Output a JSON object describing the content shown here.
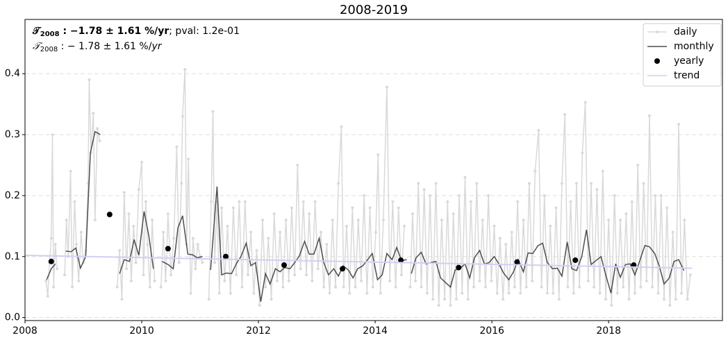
{
  "chart_data": {
    "type": "line",
    "title": "2008-2019",
    "xlim": [
      2008,
      2019.95
    ],
    "xticks": [
      2008,
      2010,
      2012,
      2014,
      2016,
      2018
    ],
    "ylim": [
      -0.005,
      0.489
    ],
    "yticks": [
      {
        "value": 0,
        "label": "0.0"
      },
      0.1,
      0.2,
      0.3,
      0.4
    ],
    "grid": true,
    "legend": "upper right",
    "annotations": [
      [
        {
          "text": "𝒯",
          "style": "bold"
        },
        {
          "text": "2008",
          "style": "bold",
          "sub": true
        },
        {
          "text": " : −1.78 ± 1.61 %/yr",
          "style": "bold"
        },
        {
          "text": "; pval: 1.2e-01",
          "style": "normal"
        }
      ],
      [
        {
          "text": "𝒯",
          "style": "italic"
        },
        {
          "text": "2008",
          "style": "normal",
          "sub": true
        },
        {
          "text": " : − 1.78 ± 1.61 %/",
          "style": "normal"
        },
        {
          "text": "yr",
          "style": "italic"
        }
      ]
    ],
    "series": [
      {
        "name": "daily",
        "kind": "line",
        "marker": true,
        "color": "#d9d9d9",
        "x": [
          2008.36,
          2008.39,
          2008.42,
          2008.45,
          2008.47,
          2008.49,
          2008.52,
          2008.55,
          2008.6,
          2008.68,
          2008.71,
          2008.74,
          2008.78,
          2008.81,
          2008.85,
          2008.88,
          2008.92,
          2008.96,
          2009.0,
          2009.04,
          2009.08,
          2009.1,
          2009.13,
          2009.17,
          2009.2,
          2009.24,
          2009.28,
          2009.4,
          2009.58,
          2009.62,
          2009.66,
          2009.7,
          2009.74,
          2009.78,
          2009.82,
          2009.86,
          2009.9,
          2009.95,
          2010.0,
          2010.03,
          2010.07,
          2010.1,
          2010.14,
          2010.18,
          2010.22,
          2010.28,
          2010.33,
          2010.37,
          2010.41,
          2010.45,
          2010.5,
          2010.55,
          2010.6,
          2010.64,
          2010.68,
          2010.7,
          2010.74,
          2010.77,
          2010.8,
          2010.84,
          2010.88,
          2010.92,
          2010.96,
          2011.0,
          2011.04,
          2011.1,
          2011.15,
          2011.19,
          2011.22,
          2011.25,
          2011.29,
          2011.33,
          2011.37,
          2011.42,
          2011.47,
          2011.52,
          2011.57,
          2011.62,
          2011.67,
          2011.72,
          2011.77,
          2011.82,
          2011.87,
          2011.92,
          2011.97,
          2012.02,
          2012.07,
          2012.12,
          2012.17,
          2012.22,
          2012.27,
          2012.32,
          2012.37,
          2012.42,
          2012.47,
          2012.52,
          2012.57,
          2012.62,
          2012.67,
          2012.72,
          2012.77,
          2012.82,
          2012.87,
          2012.92,
          2012.97,
          2013.02,
          2013.07,
          2013.12,
          2013.17,
          2013.22,
          2013.27,
          2013.32,
          2013.37,
          2013.42,
          2013.46,
          2013.51,
          2013.56,
          2013.61,
          2013.66,
          2013.71,
          2013.76,
          2013.81,
          2013.86,
          2013.91,
          2013.96,
          2014.01,
          2014.05,
          2014.09,
          2014.14,
          2014.2,
          2014.25,
          2014.3,
          2014.35,
          2014.4,
          2014.45,
          2014.5,
          2014.56,
          2014.6,
          2014.64,
          2014.69,
          2014.74,
          2014.79,
          2014.84,
          2014.89,
          2014.94,
          2014.99,
          2015.04,
          2015.09,
          2015.14,
          2015.19,
          2015.24,
          2015.29,
          2015.34,
          2015.39,
          2015.44,
          2015.49,
          2015.54,
          2015.59,
          2015.64,
          2015.69,
          2015.74,
          2015.79,
          2015.84,
          2015.89,
          2015.94,
          2015.99,
          2016.04,
          2016.09,
          2016.14,
          2016.19,
          2016.24,
          2016.29,
          2016.34,
          2016.39,
          2016.44,
          2016.49,
          2016.54,
          2016.59,
          2016.64,
          2016.69,
          2016.74,
          2016.8,
          2016.85,
          2016.9,
          2016.95,
          2017.0,
          2017.05,
          2017.1,
          2017.15,
          2017.2,
          2017.25,
          2017.3,
          2017.35,
          2017.4,
          2017.45,
          2017.5,
          2017.55,
          2017.6,
          2017.65,
          2017.7,
          2017.75,
          2017.8,
          2017.85,
          2017.9,
          2017.95,
          2018.0,
          2018.05,
          2018.1,
          2018.15,
          2018.2,
          2018.25,
          2018.3,
          2018.35,
          2018.4,
          2018.45,
          2018.5,
          2018.55,
          2018.6,
          2018.65,
          2018.7,
          2018.75,
          2018.8,
          2018.85,
          2018.9,
          2018.95,
          2019.0,
          2019.05,
          2019.1,
          2019.15,
          2019.2,
          2019.25,
          2019.3,
          2019.35,
          2019.4
        ],
        "values": [
          0.06,
          0.035,
          0.09,
          0.13,
          0.3,
          0.05,
          0.12,
          0.08,
          null,
          0.07,
          0.16,
          0.1,
          0.24,
          0.05,
          0.19,
          0.12,
          0.06,
          0.14,
          0.09,
          0.11,
          0.22,
          0.39,
          0.27,
          0.335,
          0.16,
          0.31,
          0.29,
          null,
          0.05,
          0.11,
          0.03,
          0.205,
          0.08,
          0.17,
          0.06,
          0.15,
          0.09,
          0.21,
          0.255,
          0.07,
          0.19,
          0.12,
          0.05,
          0.16,
          0.06,
          null,
          0.05,
          0.14,
          0.06,
          0.17,
          0.07,
          0.13,
          0.28,
          0.09,
          0.22,
          0.33,
          0.407,
          0.12,
          0.26,
          0.04,
          0.13,
          0.08,
          0.12,
          0.1,
          0.09,
          null,
          0.03,
          0.19,
          0.338,
          0.09,
          0.19,
          0.04,
          0.18,
          0.06,
          0.15,
          0.04,
          0.18,
          0.07,
          0.19,
          0.05,
          0.19,
          0.07,
          0.14,
          0.04,
          0.11,
          0.02,
          0.16,
          0.05,
          0.13,
          0.03,
          0.17,
          0.06,
          0.14,
          0.05,
          0.16,
          0.06,
          0.18,
          0.07,
          0.25,
          0.08,
          0.19,
          0.07,
          0.17,
          0.06,
          0.19,
          0.08,
          0.14,
          0.05,
          0.12,
          0.04,
          0.16,
          0.05,
          0.22,
          0.313,
          0.05,
          0.15,
          0.04,
          0.18,
          0.05,
          0.16,
          0.06,
          0.2,
          0.04,
          0.18,
          0.05,
          0.14,
          0.267,
          0.04,
          0.16,
          0.378,
          0.06,
          0.19,
          0.05,
          0.18,
          0.07,
          0.15,
          null,
          0.05,
          0.17,
          0.06,
          0.22,
          0.05,
          0.21,
          0.04,
          0.2,
          0.03,
          0.22,
          0.02,
          0.16,
          0.03,
          0.19,
          0.02,
          0.17,
          0.03,
          0.2,
          0.04,
          0.23,
          0.03,
          0.19,
          0.05,
          0.22,
          0.06,
          0.16,
          0.05,
          0.2,
          0.06,
          0.15,
          0.04,
          0.13,
          0.03,
          0.12,
          0.04,
          0.14,
          0.05,
          0.19,
          0.04,
          0.16,
          0.05,
          0.22,
          0.06,
          0.24,
          0.307,
          0.05,
          0.2,
          0.04,
          0.15,
          0.04,
          0.18,
          0.03,
          0.22,
          0.333,
          0.05,
          0.19,
          0.04,
          0.22,
          0.05,
          0.27,
          0.353,
          0.06,
          0.22,
          0.05,
          0.21,
          0.04,
          0.24,
          0.03,
          0.16,
          0.02,
          0.2,
          0.04,
          0.16,
          0.05,
          0.17,
          0.03,
          0.19,
          0.04,
          0.25,
          0.05,
          0.22,
          0.06,
          0.331,
          0.05,
          0.2,
          0.04,
          0.2,
          0.03,
          0.18,
          0.02,
          0.14,
          0.03,
          0.317,
          0.04,
          0.16,
          0.03,
          0.07
        ]
      },
      {
        "name": "monthly",
        "kind": "line",
        "marker": false,
        "color": "#4d4d4d",
        "x": [
          2008.37,
          2008.45,
          2008.52,
          2008.6,
          2008.7,
          2008.79,
          2008.87,
          2008.95,
          2009.04,
          2009.12,
          2009.2,
          2009.29,
          2009.45,
          2009.62,
          2009.7,
          2009.79,
          2009.87,
          2009.95,
          2010.04,
          2010.12,
          2010.2,
          2010.28,
          2010.35,
          2010.45,
          2010.54,
          2010.62,
          2010.7,
          2010.79,
          2010.87,
          2010.95,
          2011.04,
          2011.1,
          2011.18,
          2011.29,
          2011.37,
          2011.45,
          2011.54,
          2011.62,
          2011.7,
          2011.79,
          2011.87,
          2011.95,
          2012.04,
          2012.12,
          2012.2,
          2012.29,
          2012.37,
          2012.45,
          2012.54,
          2012.62,
          2012.7,
          2012.79,
          2012.87,
          2012.95,
          2013.04,
          2013.12,
          2013.2,
          2013.29,
          2013.37,
          2013.45,
          2013.54,
          2013.62,
          2013.7,
          2013.79,
          2013.87,
          2013.95,
          2014.04,
          2014.12,
          2014.2,
          2014.29,
          2014.37,
          2014.45,
          2014.54,
          2014.58,
          2014.62,
          2014.7,
          2014.79,
          2014.87,
          2014.95,
          2015.04,
          2015.12,
          2015.2,
          2015.29,
          2015.37,
          2015.45,
          2015.54,
          2015.62,
          2015.7,
          2015.79,
          2015.87,
          2015.95,
          2016.04,
          2016.12,
          2016.2,
          2016.29,
          2016.37,
          2016.45,
          2016.54,
          2016.62,
          2016.7,
          2016.79,
          2016.87,
          2016.95,
          2017.04,
          2017.12,
          2017.2,
          2017.29,
          2017.37,
          2017.45,
          2017.54,
          2017.62,
          2017.7,
          2017.79,
          2017.87,
          2017.95,
          2018.04,
          2018.12,
          2018.2,
          2018.29,
          2018.37,
          2018.45,
          2018.54,
          2018.62,
          2018.7,
          2018.79,
          2018.87,
          2018.95,
          2019.04,
          2019.12,
          2019.2,
          2019.29
        ],
        "values": [
          0.062,
          0.08,
          0.088,
          null,
          0.109,
          0.108,
          0.114,
          0.081,
          0.1,
          0.27,
          0.305,
          0.3,
          null,
          0.072,
          0.095,
          0.092,
          0.128,
          0.102,
          0.174,
          0.135,
          0.08,
          null,
          0.092,
          0.087,
          0.08,
          0.147,
          0.167,
          0.104,
          0.103,
          0.098,
          0.1,
          null,
          0.078,
          0.215,
          0.07,
          0.073,
          0.072,
          0.088,
          0.1,
          0.122,
          0.085,
          0.09,
          0.026,
          0.072,
          0.055,
          0.08,
          0.075,
          0.082,
          0.08,
          0.09,
          0.101,
          0.125,
          0.104,
          0.104,
          0.13,
          0.09,
          0.07,
          0.08,
          0.068,
          0.085,
          0.078,
          0.065,
          0.08,
          0.085,
          0.095,
          0.105,
          0.062,
          0.07,
          0.105,
          0.095,
          0.115,
          0.093,
          0.095,
          null,
          0.072,
          0.098,
          0.107,
          0.088,
          0.09,
          0.092,
          0.065,
          0.058,
          0.05,
          0.078,
          0.08,
          0.088,
          0.065,
          0.098,
          0.11,
          0.088,
          0.09,
          0.1,
          0.088,
          0.073,
          0.062,
          0.075,
          0.095,
          0.075,
          0.106,
          0.105,
          0.118,
          0.122,
          0.09,
          0.08,
          0.081,
          0.068,
          0.124,
          0.08,
          0.077,
          0.1,
          0.144,
          0.087,
          0.094,
          0.1,
          0.07,
          0.04,
          0.088,
          0.066,
          0.087,
          0.088,
          0.07,
          0.095,
          0.118,
          0.116,
          0.105,
          0.084,
          0.055,
          0.065,
          0.092,
          0.095,
          0.077
        ]
      },
      {
        "name": "yearly",
        "kind": "scatter",
        "color": "#000000",
        "x": [
          2008.45,
          2009.45,
          2010.45,
          2011.44,
          2012.44,
          2013.44,
          2014.44,
          2015.43,
          2016.43,
          2017.43,
          2018.43
        ],
        "values": [
          0.092,
          0.169,
          0.113,
          0.1,
          0.086,
          0.08,
          0.094,
          0.082,
          0.091,
          0.094,
          0.086
        ]
      },
      {
        "name": "trend",
        "kind": "line",
        "marker": false,
        "color": "#d0d0f5",
        "x": [
          2008,
          2019.43
        ],
        "values": [
          0.102,
          0.081
        ]
      }
    ]
  }
}
